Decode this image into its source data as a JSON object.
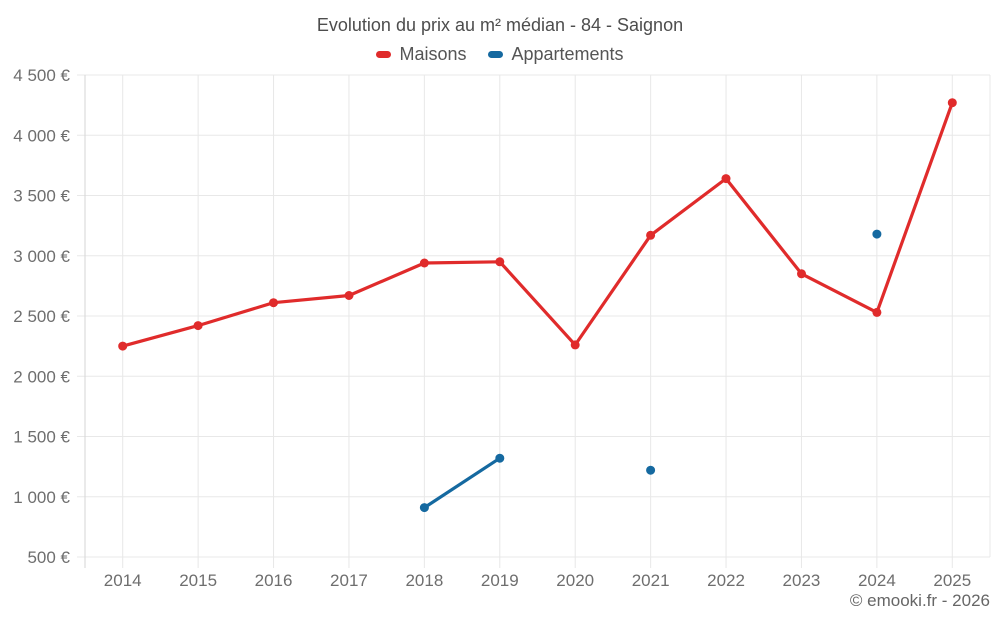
{
  "header": {
    "title": "Evolution du prix au m² médian - 84 - Saignon"
  },
  "legend": {
    "items": [
      {
        "label": "Maisons",
        "color": "#e02b2b"
      },
      {
        "label": "Appartements",
        "color": "#1569a0"
      }
    ]
  },
  "footer": {
    "attribution": "© emooki.fr - 2026"
  },
  "chart_data": {
    "type": "line",
    "title": "Evolution du prix au m² médian - 84 - Saignon",
    "categories": [
      "2014",
      "2015",
      "2016",
      "2017",
      "2018",
      "2019",
      "2020",
      "2021",
      "2022",
      "2023",
      "2024",
      "2025"
    ],
    "series": [
      {
        "name": "Maisons",
        "color": "#e02b2b",
        "values": [
          2250,
          2420,
          2610,
          2670,
          2940,
          2950,
          2260,
          3170,
          3640,
          2850,
          2530,
          4270
        ]
      },
      {
        "name": "Appartements",
        "color": "#1569a0",
        "values": [
          null,
          null,
          null,
          null,
          910,
          1320,
          null,
          1220,
          null,
          null,
          3180,
          null
        ]
      }
    ],
    "ylabel": "",
    "xlabel": "",
    "ylim": [
      500,
      4500
    ],
    "ytick_step": 500,
    "ytick_labels": [
      "500 €",
      "1 000 €",
      "1 500 €",
      "2 000 €",
      "2 500 €",
      "3 000 €",
      "3 500 €",
      "4 000 €",
      "4 500 €"
    ],
    "grid": true,
    "legend_position": "top",
    "colors": {
      "grid": "#e8e8e8",
      "axis": "#d6d6d6",
      "tick_text": "#6e6e6e"
    }
  }
}
